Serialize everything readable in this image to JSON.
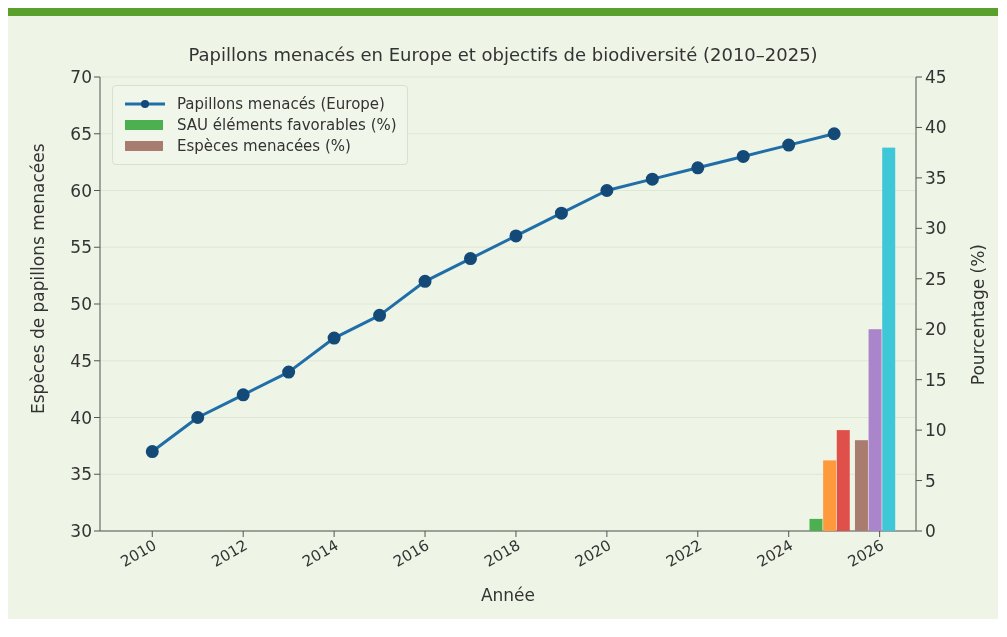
{
  "chart_data": {
    "type": "line",
    "title": "Papillons menacés en Europe et objectifs de biodiversité (2010–2025)",
    "xlabel": "Année",
    "ylabel": "Espèces de papillons menacées",
    "y2label": "Pourcentage (%)",
    "x": [
      2010,
      2011,
      2012,
      2013,
      2014,
      2015,
      2016,
      2017,
      2018,
      2019,
      2020,
      2021,
      2022,
      2023,
      2024,
      2025
    ],
    "series": [
      {
        "name": "Papillons menacés (Europe)",
        "color": "#1f6ea8",
        "values": [
          37,
          40,
          42,
          44,
          47,
          49,
          52,
          54,
          56,
          58,
          60,
          61,
          62,
          63,
          64,
          65
        ]
      },
      {
        "name": "SAU éléments favorables (%)",
        "type": "bar",
        "axis": "y2",
        "color": "#4caf50",
        "colors": [
          "#4caf50",
          "#ff9a3c",
          "#e0504a"
        ],
        "x": [
          2024.6,
          2024.9,
          2025.2
        ],
        "values": [
          1.2,
          7,
          10
        ]
      },
      {
        "name": "Espèces menacées (%)",
        "type": "bar",
        "axis": "y2",
        "color": "#a87d70",
        "colors": [
          "#a87d70",
          "#aa85cc",
          "#3ec7d6"
        ],
        "x": [
          2025.6,
          2025.9,
          2026.2
        ],
        "values": [
          9,
          20,
          38
        ]
      }
    ],
    "xlim": [
      2008.85,
      2026.8
    ],
    "xticks": [
      2010,
      2012,
      2014,
      2016,
      2018,
      2020,
      2022,
      2024,
      2026
    ],
    "ylim": [
      30,
      70
    ],
    "yticks": [
      30,
      35,
      40,
      45,
      50,
      55,
      60,
      65,
      70
    ],
    "y2lim": [
      0,
      45
    ],
    "y2ticks": [
      0,
      5,
      10,
      15,
      20,
      25,
      30,
      35,
      40,
      45
    ],
    "grid": "y",
    "legend": "top left",
    "marker": "circle",
    "line_style": "solid"
  }
}
